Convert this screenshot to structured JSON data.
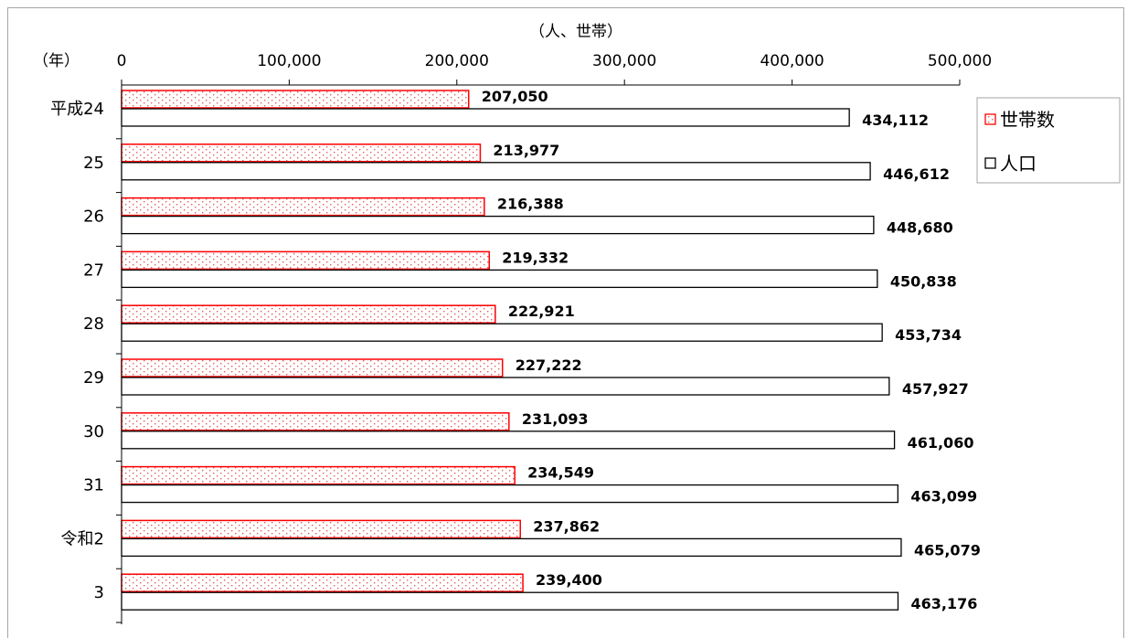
{
  "chart_data": {
    "type": "bar",
    "orientation": "horizontal",
    "y_axis_unit": "（年）",
    "x_axis_unit": "（人、世帯）",
    "categories": [
      "平成24",
      "25",
      "26",
      "27",
      "28",
      "29",
      "30",
      "31",
      "令和2",
      "3"
    ],
    "xlim": [
      0,
      500000
    ],
    "xticks": [
      0,
      100000,
      200000,
      300000,
      400000,
      500000
    ],
    "xtick_labels": [
      "0",
      "100,000",
      "200,000",
      "300,000",
      "400,000",
      "500,000"
    ],
    "series": [
      {
        "name": "世帯数",
        "color": "#ff0000",
        "fill": "dotted",
        "values": [
          207050,
          213977,
          216388,
          219332,
          222921,
          227222,
          231093,
          234549,
          237862,
          239400
        ],
        "labels": [
          "207,050",
          "213,977",
          "216,388",
          "219,332",
          "222,921",
          "227,222",
          "231,093",
          "234,549",
          "237,862",
          "239,400"
        ]
      },
      {
        "name": "人口",
        "color": "#000000",
        "fill": "none",
        "values": [
          434112,
          446612,
          448680,
          450838,
          453734,
          457927,
          461060,
          463099,
          465079,
          463176
        ],
        "labels": [
          "434,112",
          "446,612",
          "448,680",
          "450,838",
          "453,734",
          "457,927",
          "461,060",
          "463,099",
          "465,079",
          "463,176"
        ]
      }
    ],
    "legend_position": "right",
    "grid": false
  }
}
